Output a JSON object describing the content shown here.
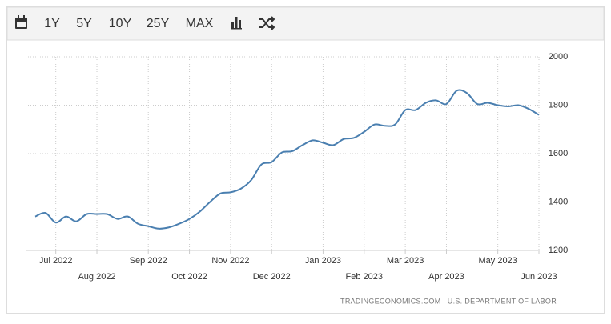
{
  "toolbar": {
    "buttons": [
      "1Y",
      "5Y",
      "10Y",
      "25Y",
      "MAX"
    ]
  },
  "chart_data": {
    "type": "line",
    "categories": [
      null,
      null,
      "Jul 2022",
      null,
      null,
      null,
      "Aug 2022",
      null,
      null,
      null,
      null,
      "Sep 2022",
      null,
      null,
      null,
      "Oct 2022",
      null,
      null,
      null,
      "Nov 2022",
      null,
      null,
      null,
      "Dec 2022",
      null,
      null,
      null,
      null,
      "Jan 2023",
      null,
      null,
      null,
      "Feb 2023",
      null,
      null,
      null,
      "Mar 2023",
      null,
      null,
      null,
      "Apr 2023",
      null,
      null,
      null,
      null,
      "May 2023",
      null,
      null,
      null,
      "Jun 2023"
    ],
    "series": [
      {
        "name": null,
        "color": "#4a7fb0",
        "values": [
          1340,
          1355,
          1315,
          1340,
          1320,
          1350,
          1350,
          1350,
          1330,
          1340,
          1310,
          1300,
          1290,
          1295,
          1310,
          1330,
          1360,
          1400,
          1435,
          1440,
          1455,
          1490,
          1555,
          1565,
          1605,
          1610,
          1635,
          1655,
          1645,
          1635,
          1660,
          1665,
          1690,
          1720,
          1715,
          1720,
          1780,
          1780,
          1810,
          1820,
          1805,
          1860,
          1850,
          1805,
          1810,
          1800,
          1795,
          1800,
          1785,
          1760
        ]
      }
    ],
    "ylim": [
      1200,
      2000
    ],
    "yticks": [
      1200,
      1400,
      1600,
      1800,
      2000
    ],
    "grid": true,
    "source": "TRADINGECONOMICS.COM  |  U.S. DEPARTMENT OF LABOR"
  }
}
